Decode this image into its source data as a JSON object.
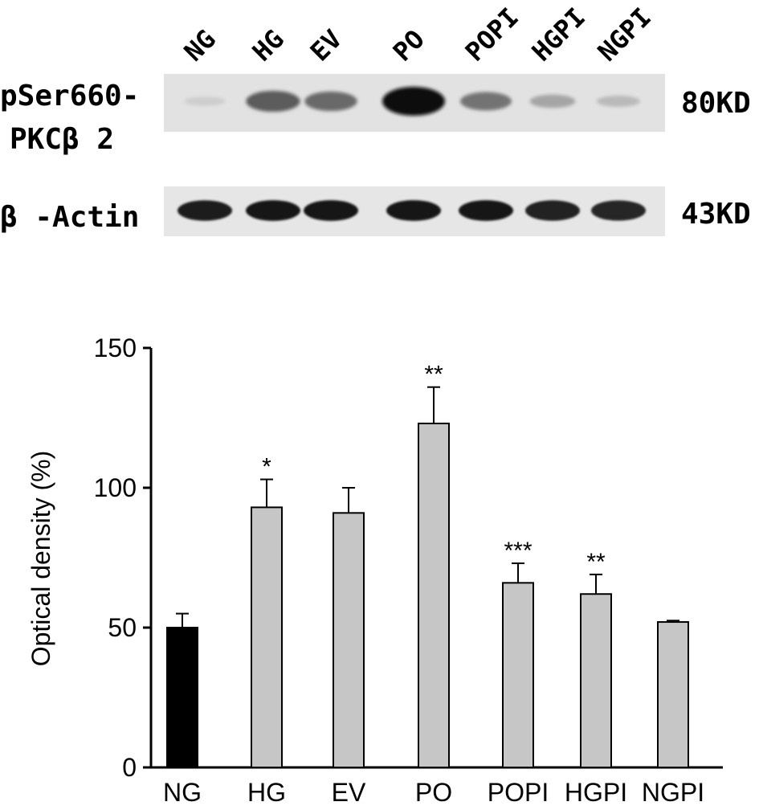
{
  "blot": {
    "lanes": [
      "NG",
      "HG",
      "EV",
      "PO",
      "POPI",
      "HGPI",
      "NGPI"
    ],
    "target_label_line1": "pSer660-",
    "target_label_line2": "PKCβ 2",
    "target_weight": "80KD",
    "control_label": "β -Actin",
    "control_weight": "43KD",
    "target_band_intensity": [
      0.05,
      0.62,
      0.55,
      1.0,
      0.5,
      0.25,
      0.15
    ],
    "control_band_intensity": [
      0.92,
      0.95,
      0.95,
      0.95,
      0.95,
      0.9,
      0.88
    ]
  },
  "chart_data": {
    "type": "bar",
    "categories": [
      "NG",
      "HG",
      "EV",
      "PO",
      "POPI",
      "HGPI",
      "NGPI"
    ],
    "values": [
      50,
      93,
      91,
      123,
      66,
      62,
      52
    ],
    "errors": [
      5,
      10,
      9,
      13,
      7,
      7,
      0.5
    ],
    "significance": [
      "",
      "*",
      "",
      "**",
      "***",
      "**",
      ""
    ],
    "bar_colors": [
      "#000000",
      "#c6c6c6",
      "#c6c6c6",
      "#c6c6c6",
      "#c6c6c6",
      "#c6c6c6",
      "#c6c6c6"
    ],
    "ylabel": "Optical density (%)",
    "ylim": [
      0,
      150
    ],
    "yticks": [
      0,
      50,
      100,
      150
    ],
    "ytick_labels": [
      "0",
      "50",
      "100",
      "150"
    ]
  }
}
